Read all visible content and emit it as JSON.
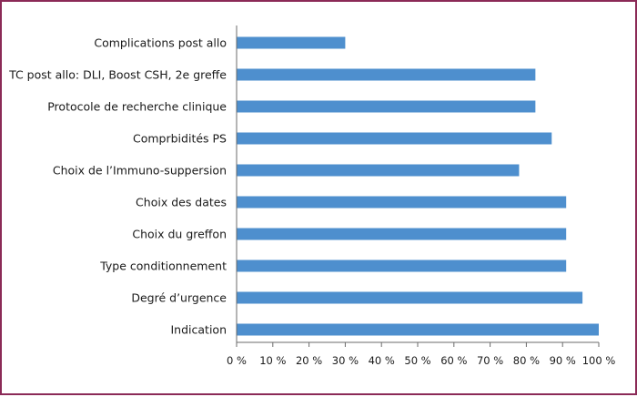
{
  "chart_data": {
    "type": "bar",
    "orientation": "horizontal",
    "categories": [
      "Complications post allo",
      "TC post allo: DLI, Boost CSH, 2e greffe",
      "Protocole de recherche clinique",
      "Comprbidités PS",
      "Choix de l’Immuno-suppersion",
      "Choix des dates",
      "Choix du greffon",
      "Type conditionnement",
      "Degré d’urgence",
      "Indication"
    ],
    "values": [
      30,
      82.5,
      82.5,
      87,
      78,
      91,
      91,
      91,
      95.5,
      100
    ],
    "xlim": [
      0,
      100
    ],
    "xticks": [
      0,
      10,
      20,
      30,
      40,
      50,
      60,
      70,
      80,
      90,
      100
    ],
    "xtick_labels": [
      "0 %",
      "10 %",
      "20 %",
      "30 %",
      "40 %",
      "50 %",
      "60 %",
      "70 %",
      "80 %",
      "90 %",
      "100 %"
    ],
    "title": "",
    "xlabel": "",
    "ylabel": "",
    "grid": false,
    "colors": {
      "bar": "#4e8fce",
      "axis": "#6b6b6b",
      "frame": "#8b2a57",
      "text": "#1a1a1a"
    }
  }
}
